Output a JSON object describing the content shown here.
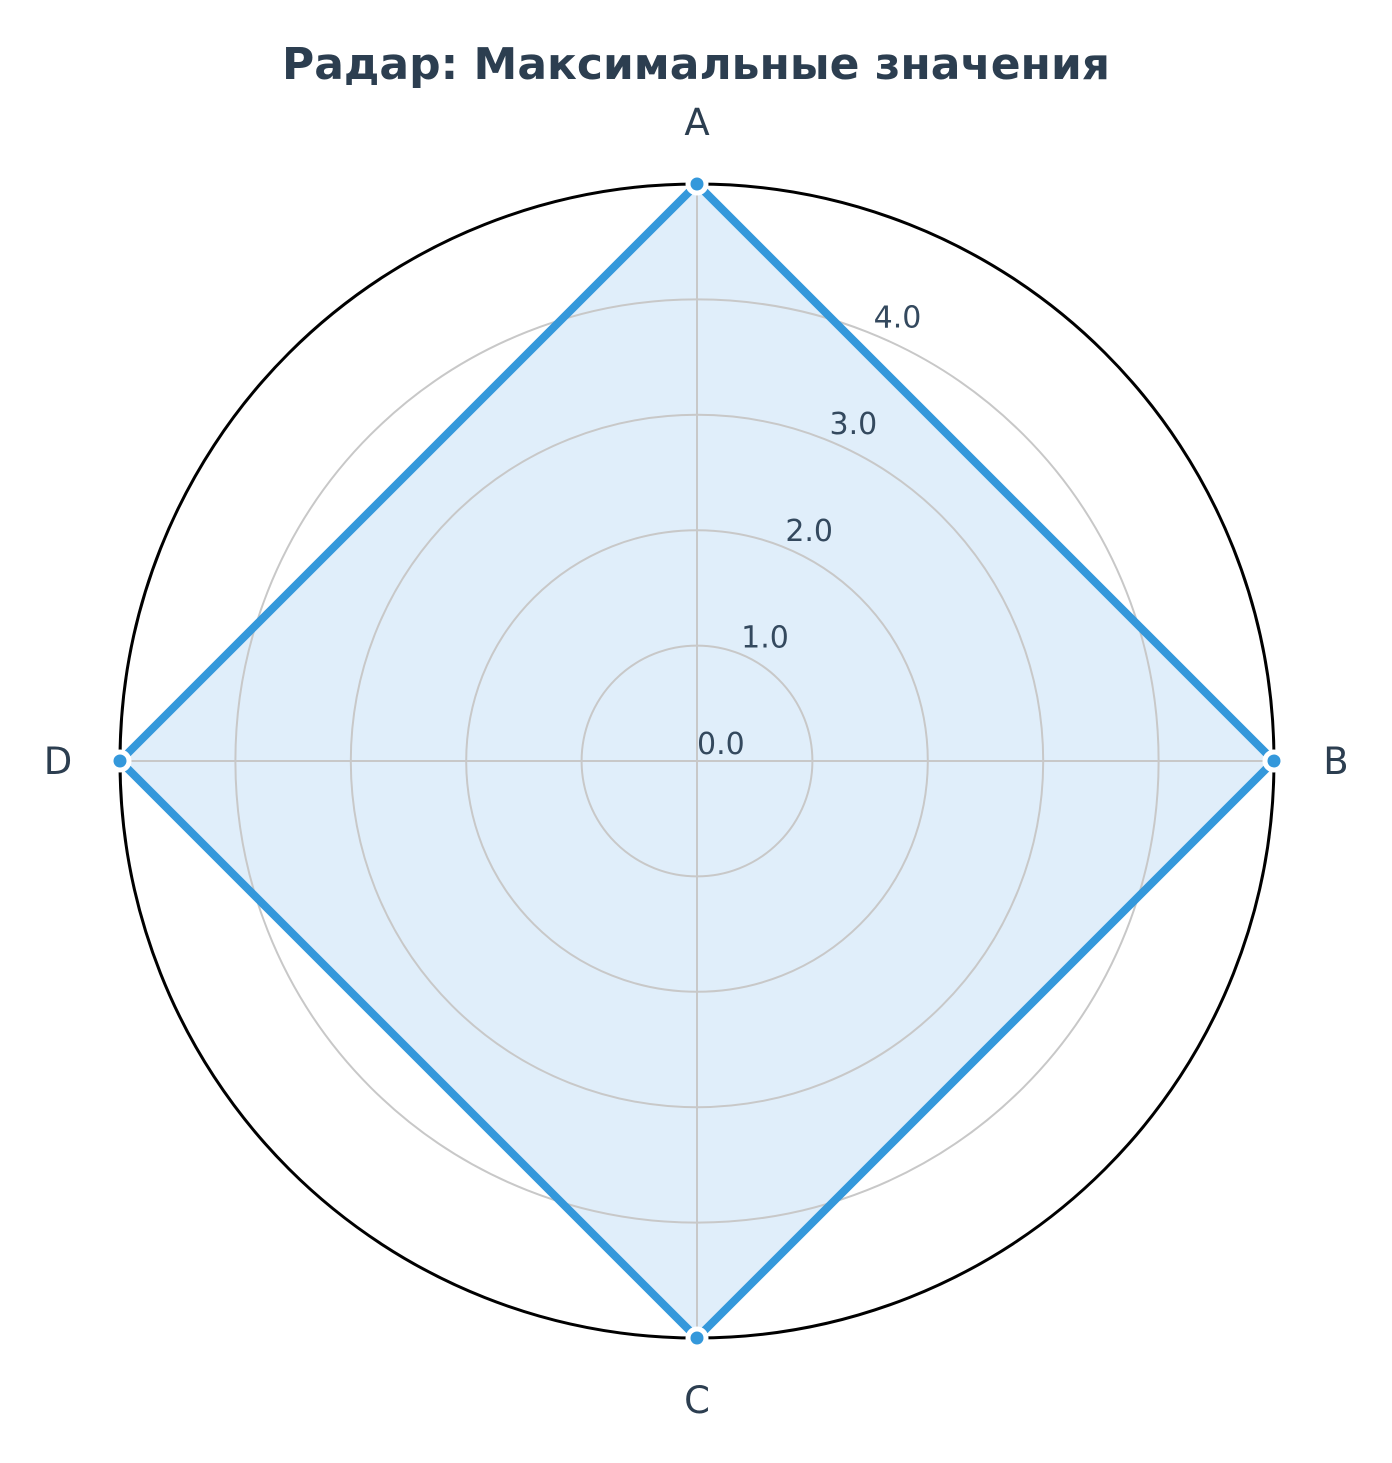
{
  "chart_data": {
    "type": "radar",
    "title": "Радар: Максимальные значения",
    "categories": [
      "A",
      "B",
      "C",
      "D"
    ],
    "series": [
      {
        "values": [
          5.0,
          5.0,
          5.0,
          5.0
        ]
      }
    ],
    "rlim": [
      0,
      5
    ],
    "rticks": [
      0,
      1,
      2,
      3,
      4
    ],
    "rtick_labels": [
      "0.0",
      "1.0",
      "2.0",
      "3.0",
      "4.0"
    ],
    "grid": true,
    "colors": {
      "line": "#3498db",
      "fill": "#d6e8f8",
      "grid": "#c8c8c8",
      "frame": "#000000",
      "text": "#2c3e50"
    }
  }
}
